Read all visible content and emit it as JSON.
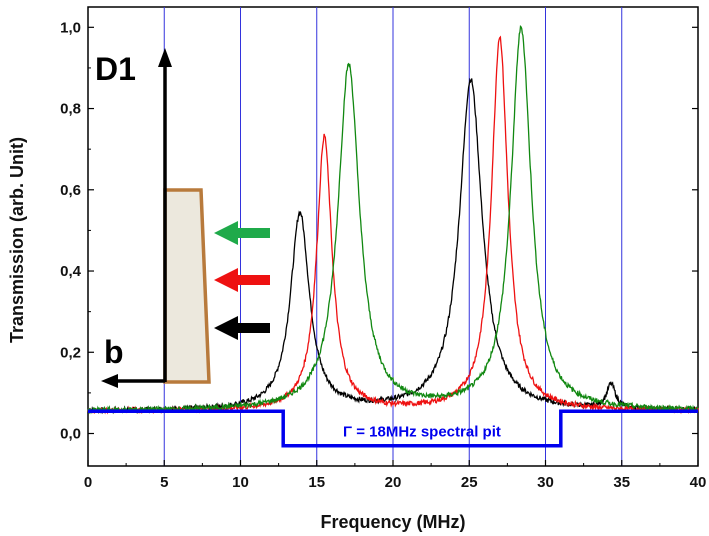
{
  "chart_data": {
    "type": "line",
    "xlabel": "Frequency (MHz)",
    "ylabel": "Transmission (arb. Unit)",
    "xlim": [
      0,
      40
    ],
    "ylim": [
      -0.08,
      1.05
    ],
    "x_ticks": [
      0,
      5,
      10,
      15,
      20,
      25,
      30,
      35,
      40
    ],
    "x_tick_labels": [
      "0",
      "5",
      "10",
      "15",
      "20",
      "25",
      "30",
      "35",
      "40"
    ],
    "y_ticks": [
      0.0,
      0.2,
      0.4,
      0.6,
      0.8,
      1.0
    ],
    "y_tick_labels": [
      "0,0",
      "0,2",
      "0,4",
      "0,6",
      "0,8",
      "1,0"
    ],
    "vertical_gridlines": [
      5,
      10,
      15,
      20,
      25,
      30,
      35
    ],
    "baseline": 0.055,
    "series": [
      {
        "color": "#000000",
        "peaks": [
          {
            "x": 13.9,
            "height": 0.54,
            "width": 0.75
          },
          {
            "x": 25.1,
            "height": 0.87,
            "width": 0.9
          },
          {
            "x": 34.3,
            "height": 0.115,
            "width": 0.35
          }
        ]
      },
      {
        "color": "#ee1111",
        "peaks": [
          {
            "x": 15.5,
            "height": 0.73,
            "width": 0.6
          },
          {
            "x": 27.0,
            "height": 0.975,
            "width": 0.65
          }
        ]
      },
      {
        "color": "#118811",
        "peaks": [
          {
            "x": 17.1,
            "height": 0.905,
            "width": 0.85
          },
          {
            "x": 28.4,
            "height": 0.995,
            "width": 0.8
          }
        ]
      }
    ],
    "spectral_pit": {
      "color": "#0000ee",
      "label": "Γ = 18MHz spectral pit",
      "x_start": 12.8,
      "x_end": 31.0,
      "outside_level": 0.055,
      "inside_level": -0.03
    },
    "inset": {
      "top_label": "D1",
      "bottom_label": "b",
      "arrow_colors": [
        "#1faa4a",
        "#ee1111",
        "#000000"
      ]
    }
  }
}
